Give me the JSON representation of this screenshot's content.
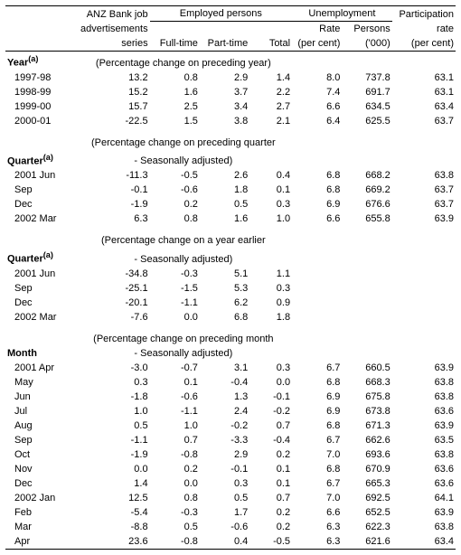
{
  "colors": {
    "bg": "#ffffff",
    "text": "#000000",
    "rule": "#000000"
  },
  "header": {
    "anz1": "ANZ Bank job",
    "anz2": "advertisements",
    "anz3": "series",
    "emp_group": "Employed persons",
    "unemp_group": "Unemployment",
    "fulltime": "Full-time",
    "parttime": "Part-time",
    "total": "Total",
    "rate": "Rate",
    "rate_unit": "(per cent)",
    "persons": "Persons",
    "persons_unit": "('000)",
    "partic1": "Participation",
    "partic2": "rate",
    "partic3": "(per cent)"
  },
  "sections": {
    "year": "Year",
    "year_note": "(Percentage change on preceding year)",
    "quarter_a": "Quarter",
    "quarter_a_note1": "(Percentage change on preceding quarter",
    "quarter_a_note2": "- Seasonally adjusted)",
    "quarter_b": "Quarter",
    "quarter_b_note1": "(Percentage change on a year earlier",
    "quarter_b_note2": "- Seasonally adjusted)",
    "month": "Month",
    "month_note1": "(Percentage change on preceding month",
    "month_note2": "- Seasonally adjusted)",
    "sup": "(a)"
  },
  "year_rows": [
    {
      "label": "1997-98",
      "v": [
        "13.2",
        "0.8",
        "2.9",
        "1.4",
        "8.0",
        "737.8",
        "63.1"
      ]
    },
    {
      "label": "1998-99",
      "v": [
        "15.2",
        "1.6",
        "3.7",
        "2.2",
        "7.4",
        "691.7",
        "63.1"
      ]
    },
    {
      "label": "1999-00",
      "v": [
        "15.7",
        "2.5",
        "3.4",
        "2.7",
        "6.6",
        "634.5",
        "63.4"
      ]
    },
    {
      "label": "2000-01",
      "v": [
        "-22.5",
        "1.5",
        "3.8",
        "2.1",
        "6.4",
        "625.5",
        "63.7"
      ]
    }
  ],
  "quarter_a_rows": [
    {
      "label": "2001 Jun",
      "v": [
        "-11.3",
        "-0.5",
        "2.6",
        "0.4",
        "6.8",
        "668.2",
        "63.8"
      ]
    },
    {
      "label": "Sep",
      "v": [
        "-0.1",
        "-0.6",
        "1.8",
        "0.1",
        "6.8",
        "669.2",
        "63.7"
      ]
    },
    {
      "label": "Dec",
      "v": [
        "-1.9",
        "0.2",
        "0.5",
        "0.3",
        "6.9",
        "676.6",
        "63.7"
      ]
    },
    {
      "label": "2002 Mar",
      "v": [
        "6.3",
        "0.8",
        "1.6",
        "1.0",
        "6.6",
        "655.8",
        "63.9"
      ]
    }
  ],
  "quarter_b_rows": [
    {
      "label": "2001 Jun",
      "v": [
        "-34.8",
        "-0.3",
        "5.1",
        "1.1",
        "",
        "",
        ""
      ]
    },
    {
      "label": "Sep",
      "v": [
        "-25.1",
        "-1.5",
        "5.3",
        "0.3",
        "",
        "",
        ""
      ]
    },
    {
      "label": "Dec",
      "v": [
        "-20.1",
        "-1.1",
        "6.2",
        "0.9",
        "",
        "",
        ""
      ]
    },
    {
      "label": "2002 Mar",
      "v": [
        "-7.6",
        "0.0",
        "6.8",
        "1.8",
        "",
        "",
        ""
      ]
    }
  ],
  "month_rows": [
    {
      "label": "2001 Apr",
      "v": [
        "-3.0",
        "-0.7",
        "3.1",
        "0.3",
        "6.7",
        "660.5",
        "63.9"
      ]
    },
    {
      "label": "May",
      "v": [
        "0.3",
        "0.1",
        "-0.4",
        "0.0",
        "6.8",
        "668.3",
        "63.8"
      ]
    },
    {
      "label": "Jun",
      "v": [
        "-1.8",
        "-0.6",
        "1.3",
        "-0.1",
        "6.9",
        "675.8",
        "63.8"
      ]
    },
    {
      "label": "Jul",
      "v": [
        "1.0",
        "-1.1",
        "2.4",
        "-0.2",
        "6.9",
        "673.8",
        "63.6"
      ]
    },
    {
      "label": "Aug",
      "v": [
        "0.5",
        "1.0",
        "-0.2",
        "0.7",
        "6.8",
        "671.3",
        "63.9"
      ]
    },
    {
      "label": "Sep",
      "v": [
        "-1.1",
        "0.7",
        "-3.3",
        "-0.4",
        "6.7",
        "662.6",
        "63.5"
      ]
    },
    {
      "label": "Oct",
      "v": [
        "-1.9",
        "-0.8",
        "2.9",
        "0.2",
        "7.0",
        "693.6",
        "63.8"
      ]
    },
    {
      "label": "Nov",
      "v": [
        "0.0",
        "0.2",
        "-0.1",
        "0.1",
        "6.8",
        "670.9",
        "63.6"
      ]
    },
    {
      "label": "Dec",
      "v": [
        "1.4",
        "0.0",
        "0.3",
        "0.1",
        "6.7",
        "665.3",
        "63.6"
      ]
    },
    {
      "label": "2002 Jan",
      "v": [
        "12.5",
        "0.8",
        "0.5",
        "0.7",
        "7.0",
        "692.5",
        "64.1"
      ]
    },
    {
      "label": "Feb",
      "v": [
        "-5.4",
        "-0.3",
        "1.7",
        "0.2",
        "6.6",
        "652.5",
        "63.9"
      ]
    },
    {
      "label": "Mar",
      "v": [
        "-8.8",
        "0.5",
        "-0.6",
        "0.2",
        "6.3",
        "622.3",
        "63.8"
      ]
    },
    {
      "label": "Apr",
      "v": [
        "23.6",
        "-0.8",
        "0.4",
        "-0.5",
        "6.3",
        "621.6",
        "63.4"
      ]
    }
  ]
}
